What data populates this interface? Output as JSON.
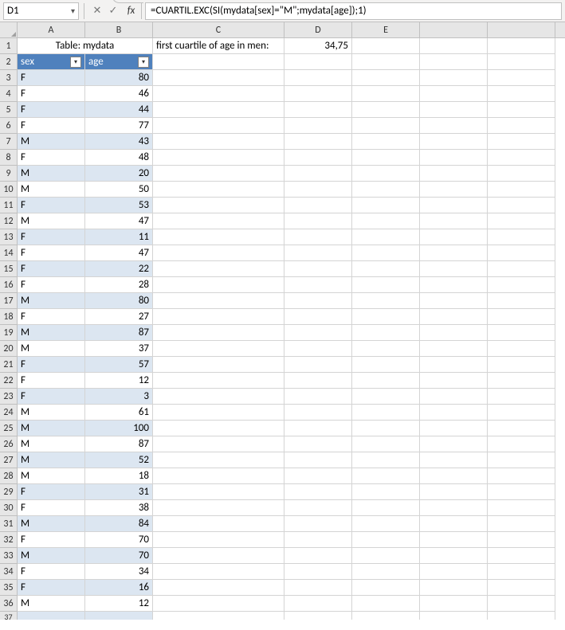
{
  "nameBox": "D1",
  "fxLabel": "fx",
  "formula": "=CUARTIL.EXC(SI(mydata[sex]=\"M\";mydata[age]);1)",
  "tableTitle": "Table: mydata",
  "header_sex": "sex",
  "header_age": "age",
  "c_label": "first cuartile of age in men:",
  "d_value": "34,75",
  "cols": [
    "A",
    "B",
    "C",
    "D",
    "E",
    ""
  ],
  "data": [
    {
      "sex": "F",
      "age": 80
    },
    {
      "sex": "F",
      "age": 46
    },
    {
      "sex": "F",
      "age": 44
    },
    {
      "sex": "F",
      "age": 77
    },
    {
      "sex": "M",
      "age": 43
    },
    {
      "sex": "F",
      "age": 48
    },
    {
      "sex": "M",
      "age": 20
    },
    {
      "sex": "M",
      "age": 50
    },
    {
      "sex": "F",
      "age": 53
    },
    {
      "sex": "M",
      "age": 47
    },
    {
      "sex": "F",
      "age": 11
    },
    {
      "sex": "F",
      "age": 47
    },
    {
      "sex": "F",
      "age": 22
    },
    {
      "sex": "F",
      "age": 28
    },
    {
      "sex": "M",
      "age": 80
    },
    {
      "sex": "F",
      "age": 27
    },
    {
      "sex": "M",
      "age": 87
    },
    {
      "sex": "M",
      "age": 37
    },
    {
      "sex": "F",
      "age": 57
    },
    {
      "sex": "F",
      "age": 12
    },
    {
      "sex": "F",
      "age": 3
    },
    {
      "sex": "M",
      "age": 61
    },
    {
      "sex": "M",
      "age": 100
    },
    {
      "sex": "M",
      "age": 87
    },
    {
      "sex": "M",
      "age": 52
    },
    {
      "sex": "M",
      "age": 18
    },
    {
      "sex": "F",
      "age": 31
    },
    {
      "sex": "F",
      "age": 38
    },
    {
      "sex": "M",
      "age": 84
    },
    {
      "sex": "F",
      "age": 70
    },
    {
      "sex": "M",
      "age": 70
    },
    {
      "sex": "F",
      "age": 34
    },
    {
      "sex": "F",
      "age": 16
    },
    {
      "sex": "M",
      "age": 12
    }
  ],
  "colors": {
    "band": "#dce6f1",
    "headerBg": "#4f81bd",
    "headerText": "#ffffff",
    "grid": "#d4d4d4"
  }
}
